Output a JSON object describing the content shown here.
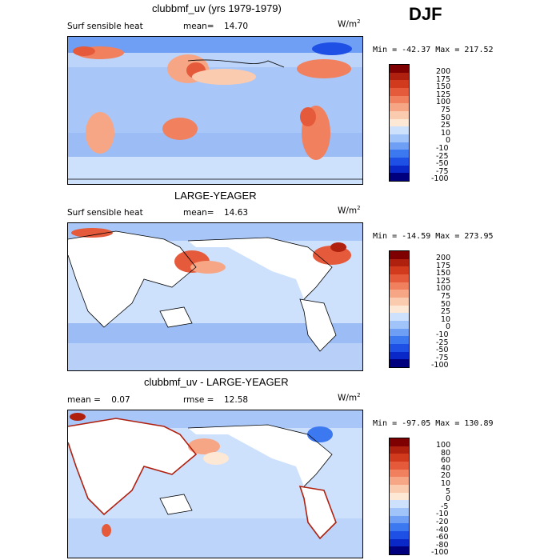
{
  "season": "DJF",
  "panels": [
    {
      "title": "clubbmf_uv (yrs 1979-1979)",
      "left_label": "Surf sensible heat",
      "stat_label": "mean=",
      "stat_value": "14.70",
      "unit": "W/m",
      "unit_exp": "2",
      "minmax": "Min = -42.37  Max = 217.52",
      "colorbar_labels": [
        "200",
        "175",
        "150",
        "125",
        "100",
        "75",
        "50",
        "25",
        "10",
        "0",
        "-10",
        "-25",
        "-50",
        "-75",
        "-100"
      ]
    },
    {
      "title": "LARGE-YEAGER",
      "left_label": "Surf sensible heat",
      "stat_label": "mean=",
      "stat_value": "14.63",
      "unit": "W/m",
      "unit_exp": "2",
      "minmax": "Min = -14.59  Max = 273.95",
      "colorbar_labels": [
        "200",
        "175",
        "150",
        "125",
        "100",
        "75",
        "50",
        "25",
        "10",
        "0",
        "-10",
        "-25",
        "-50",
        "-75",
        "-100"
      ]
    },
    {
      "title": "clubbmf_uv - LARGE-YEAGER",
      "left_label": "mean =    0.07",
      "stat_label": "rmse =",
      "stat_value": "12.58",
      "unit": "W/m",
      "unit_exp": "2",
      "minmax": "Min = -97.05  Max = 130.89",
      "colorbar_labels": [
        "100",
        "80",
        "60",
        "40",
        "20",
        "10",
        "5",
        "0",
        "-5",
        "-10",
        "-20",
        "-40",
        "-60",
        "-80",
        "-100"
      ]
    }
  ],
  "chart_data": [
    {
      "type": "heatmap",
      "title": "clubbmf_uv (yrs 1979-1979)",
      "variable": "Surf sensible heat",
      "units": "W/m2",
      "mean": 14.7,
      "min": -42.37,
      "max": 217.52,
      "contour_levels": [
        -100,
        -75,
        -50,
        -25,
        -10,
        0,
        10,
        25,
        50,
        75,
        100,
        125,
        150,
        175,
        200
      ],
      "colors": [
        "#00007f",
        "#0a28c8",
        "#1e50e6",
        "#3c78f0",
        "#6e9ff5",
        "#a0c3fa",
        "#cde0fc",
        "#fde8d6",
        "#fbcbb0",
        "#f7a685",
        "#f0805e",
        "#e55a3a",
        "#d23a1e",
        "#b0200f",
        "#7f0000"
      ]
    },
    {
      "type": "heatmap",
      "title": "LARGE-YEAGER",
      "variable": "Surf sensible heat",
      "units": "W/m2",
      "mean": 14.63,
      "min": -14.59,
      "max": 273.95,
      "contour_levels": [
        -100,
        -75,
        -50,
        -25,
        -10,
        0,
        10,
        25,
        50,
        75,
        100,
        125,
        150,
        175,
        200
      ]
    },
    {
      "type": "heatmap",
      "title": "clubbmf_uv - LARGE-YEAGER",
      "mean": 0.07,
      "rmse": 12.58,
      "units": "W/m2",
      "min": -97.05,
      "max": 130.89,
      "contour_levels": [
        -100,
        -80,
        -60,
        -40,
        -20,
        -10,
        -5,
        0,
        5,
        10,
        20,
        40,
        60,
        80,
        100
      ]
    }
  ]
}
